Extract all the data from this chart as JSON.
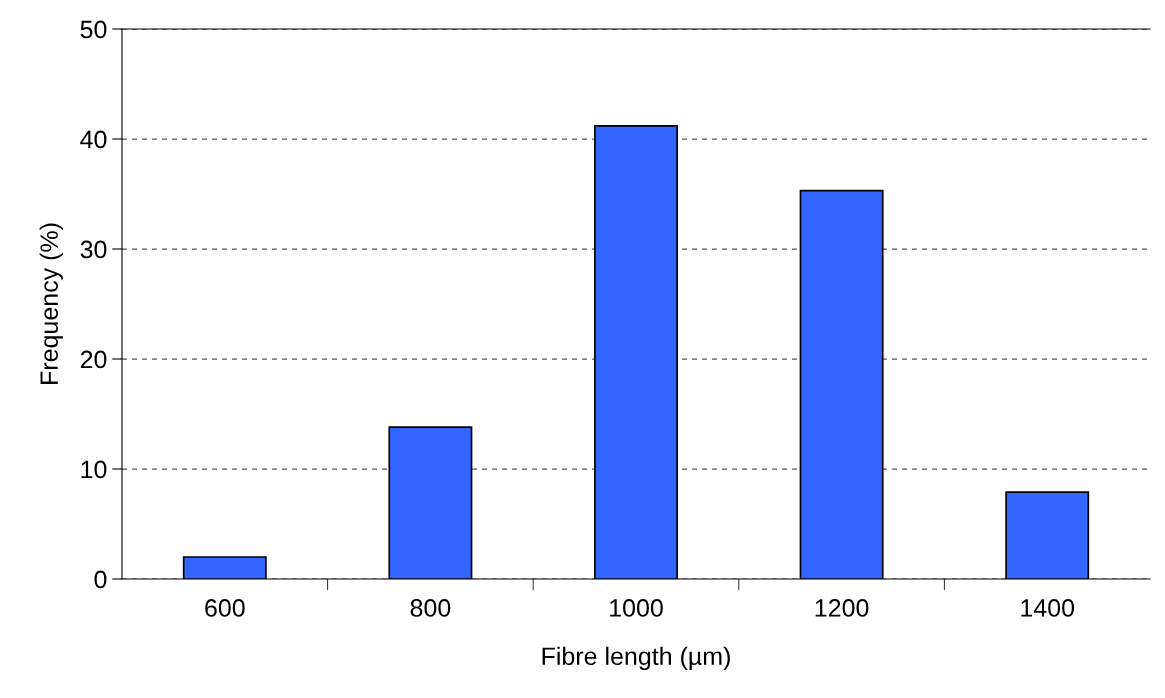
{
  "chart_data": {
    "type": "bar",
    "xlabel": "Fibre length (µm)",
    "ylabel": "Frequency (%)",
    "categories": [
      "600",
      "800",
      "1000",
      "1200",
      "1400"
    ],
    "values": [
      2.0,
      13.8,
      41.2,
      35.3,
      7.9
    ],
    "color": "#3366ff",
    "ylim": [
      0,
      50
    ],
    "yticks": [
      0,
      10,
      20,
      30,
      40,
      50
    ],
    "grid": "y",
    "line_style": "dashed"
  }
}
